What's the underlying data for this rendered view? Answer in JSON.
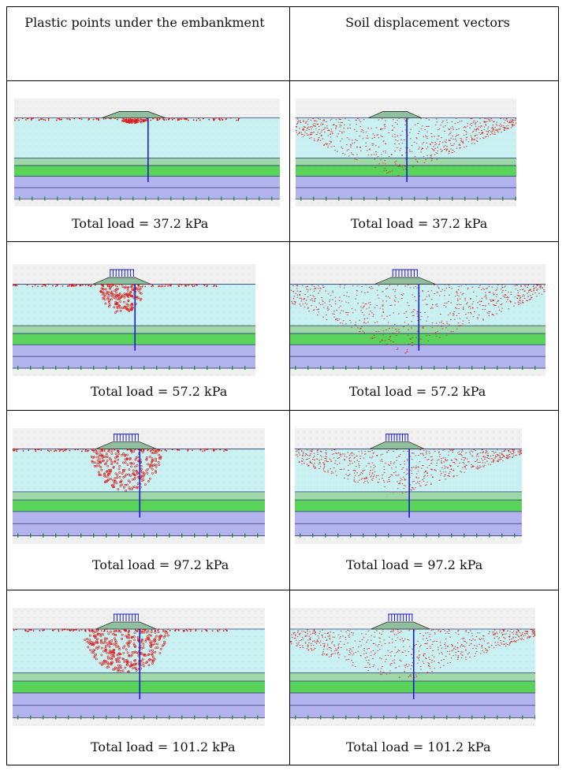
{
  "columns": [
    "Plastic points under the embankment",
    "Soil displacement vectors"
  ],
  "rows": [
    {
      "left_caption": "Total load = 37.2 kPa",
      "right_caption": "Total load = 37.2 kPa"
    },
    {
      "left_caption": "Total load = 57.2 kPa",
      "right_caption": "Total load = 57.2 kPa"
    },
    {
      "left_caption": "Total load = 97.2 kPa",
      "right_caption": "Total load = 97.2 kPa"
    },
    {
      "left_caption": "Total load = 101.2 kPa",
      "right_caption": "Total load = 101.2 kPa"
    }
  ],
  "colors": {
    "clay_layer": "#c9f1f1",
    "sand_layer": "#5ad35a",
    "transition_layer": "#9fd8a8",
    "bottom_layer": "#b3b3ee",
    "plastic_points": "#e01818",
    "pile": "#1b1bd0"
  }
}
